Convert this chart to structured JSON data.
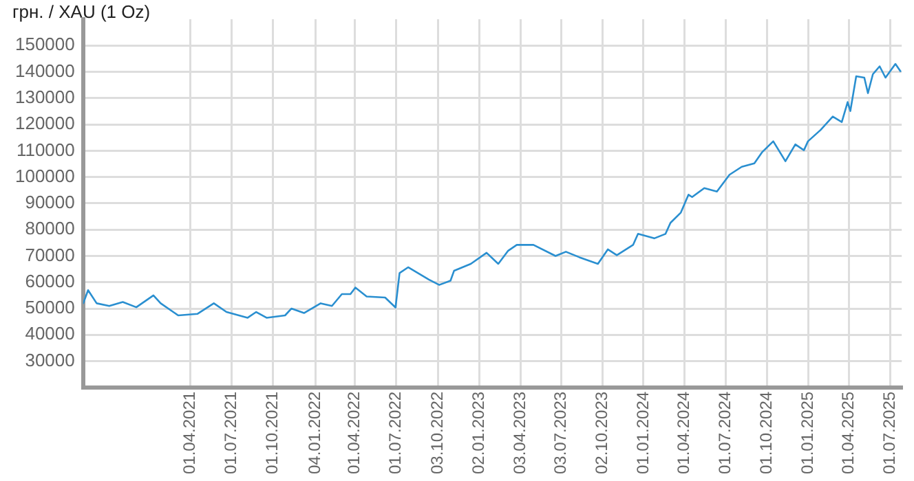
{
  "chart_data": {
    "type": "line",
    "ylabel": "грн. / XAU (1 Oz)",
    "x": [
      "2020-08-06",
      "2020-08-17",
      "2020-09-05",
      "2020-10-03",
      "2020-11-02",
      "2020-12-02",
      "2021-01-09",
      "2021-01-25",
      "2021-03-05",
      "2021-04-17",
      "2021-05-23",
      "2021-06-20",
      "2021-08-06",
      "2021-08-25",
      "2021-09-17",
      "2021-10-28",
      "2021-11-11",
      "2021-12-09",
      "2022-01-15",
      "2022-02-09",
      "2022-03-03",
      "2022-03-22",
      "2022-04-02",
      "2022-04-27",
      "2022-06-07",
      "2022-06-30",
      "2022-07-09",
      "2022-07-28",
      "2022-09-12",
      "2022-10-05",
      "2022-10-30",
      "2022-11-07",
      "2022-12-14",
      "2023-01-18",
      "2023-02-13",
      "2023-03-07",
      "2023-03-26",
      "2023-05-02",
      "2023-06-20",
      "2023-07-13",
      "2023-08-12",
      "2023-09-22",
      "2023-10-14",
      "2023-11-03",
      "2023-12-09",
      "2023-12-20",
      "2024-01-25",
      "2024-02-19",
      "2024-03-01",
      "2024-03-24",
      "2024-04-10",
      "2024-04-18",
      "2024-05-15",
      "2024-06-12",
      "2024-07-10",
      "2024-08-06",
      "2024-09-03",
      "2024-09-20",
      "2024-10-15",
      "2024-11-11",
      "2024-12-03",
      "2024-12-22",
      "2024-12-31",
      "2025-01-28",
      "2025-02-24",
      "2025-03-16",
      "2025-03-29",
      "2025-04-04",
      "2025-04-17",
      "2025-05-05",
      "2025-05-13",
      "2025-05-24",
      "2025-06-08",
      "2025-06-21",
      "2025-07-13",
      "2025-07-25"
    ],
    "series": [
      {
        "color": "#2a8fd0",
        "values": [
          51800,
          57000,
          52000,
          51000,
          52500,
          50500,
          55000,
          52000,
          47400,
          48000,
          52000,
          48700,
          46500,
          48700,
          46500,
          47400,
          50000,
          48300,
          52000,
          51000,
          55500,
          55500,
          58000,
          54600,
          54200,
          50400,
          63500,
          65700,
          61000,
          59000,
          60600,
          64400,
          67000,
          71200,
          67000,
          72000,
          74200,
          74200,
          70000,
          71600,
          69500,
          67000,
          72500,
          70300,
          74200,
          78400,
          76700,
          78400,
          82600,
          86500,
          93300,
          92400,
          95800,
          94500,
          100900,
          103900,
          105200,
          109400,
          113600,
          106000,
          112400,
          110200,
          113600,
          117900,
          123000,
          120900,
          128500,
          125100,
          138300,
          137800,
          131900,
          139100,
          142100,
          137800,
          143000,
          140000
        ]
      }
    ],
    "xlim": [
      "2020-08-06",
      "2025-07-27"
    ],
    "xticks": [
      {
        "value": "2021-04-01",
        "label": "01.04.2021"
      },
      {
        "value": "2021-07-01",
        "label": "01.07.2021"
      },
      {
        "value": "2021-10-01",
        "label": "01.10.2021"
      },
      {
        "value": "2022-01-04",
        "label": "04.01.2022"
      },
      {
        "value": "2022-04-01",
        "label": "01.04.2022"
      },
      {
        "value": "2022-07-01",
        "label": "01.07.2022"
      },
      {
        "value": "2022-10-03",
        "label": "03.10.2022"
      },
      {
        "value": "2023-01-02",
        "label": "02.01.2023"
      },
      {
        "value": "2023-04-03",
        "label": "03.04.2023"
      },
      {
        "value": "2023-07-03",
        "label": "03.07.2023"
      },
      {
        "value": "2023-10-02",
        "label": "02.10.2023"
      },
      {
        "value": "2024-01-01",
        "label": "01.01.2024"
      },
      {
        "value": "2024-04-01",
        "label": "01.04.2024"
      },
      {
        "value": "2024-07-01",
        "label": "01.07.2024"
      },
      {
        "value": "2024-10-01",
        "label": "01.10.2024"
      },
      {
        "value": "2025-01-01",
        "label": "01.01.2025"
      },
      {
        "value": "2025-04-01",
        "label": "01.04.2025"
      },
      {
        "value": "2025-07-01",
        "label": "01.07.2025"
      }
    ],
    "ylim": [
      20000,
      160000
    ],
    "yticks": [
      30000,
      40000,
      50000,
      60000,
      70000,
      80000,
      90000,
      100000,
      110000,
      120000,
      130000,
      140000,
      150000
    ],
    "grid": true,
    "legend": false,
    "marker": "none",
    "line_style": "solid"
  }
}
